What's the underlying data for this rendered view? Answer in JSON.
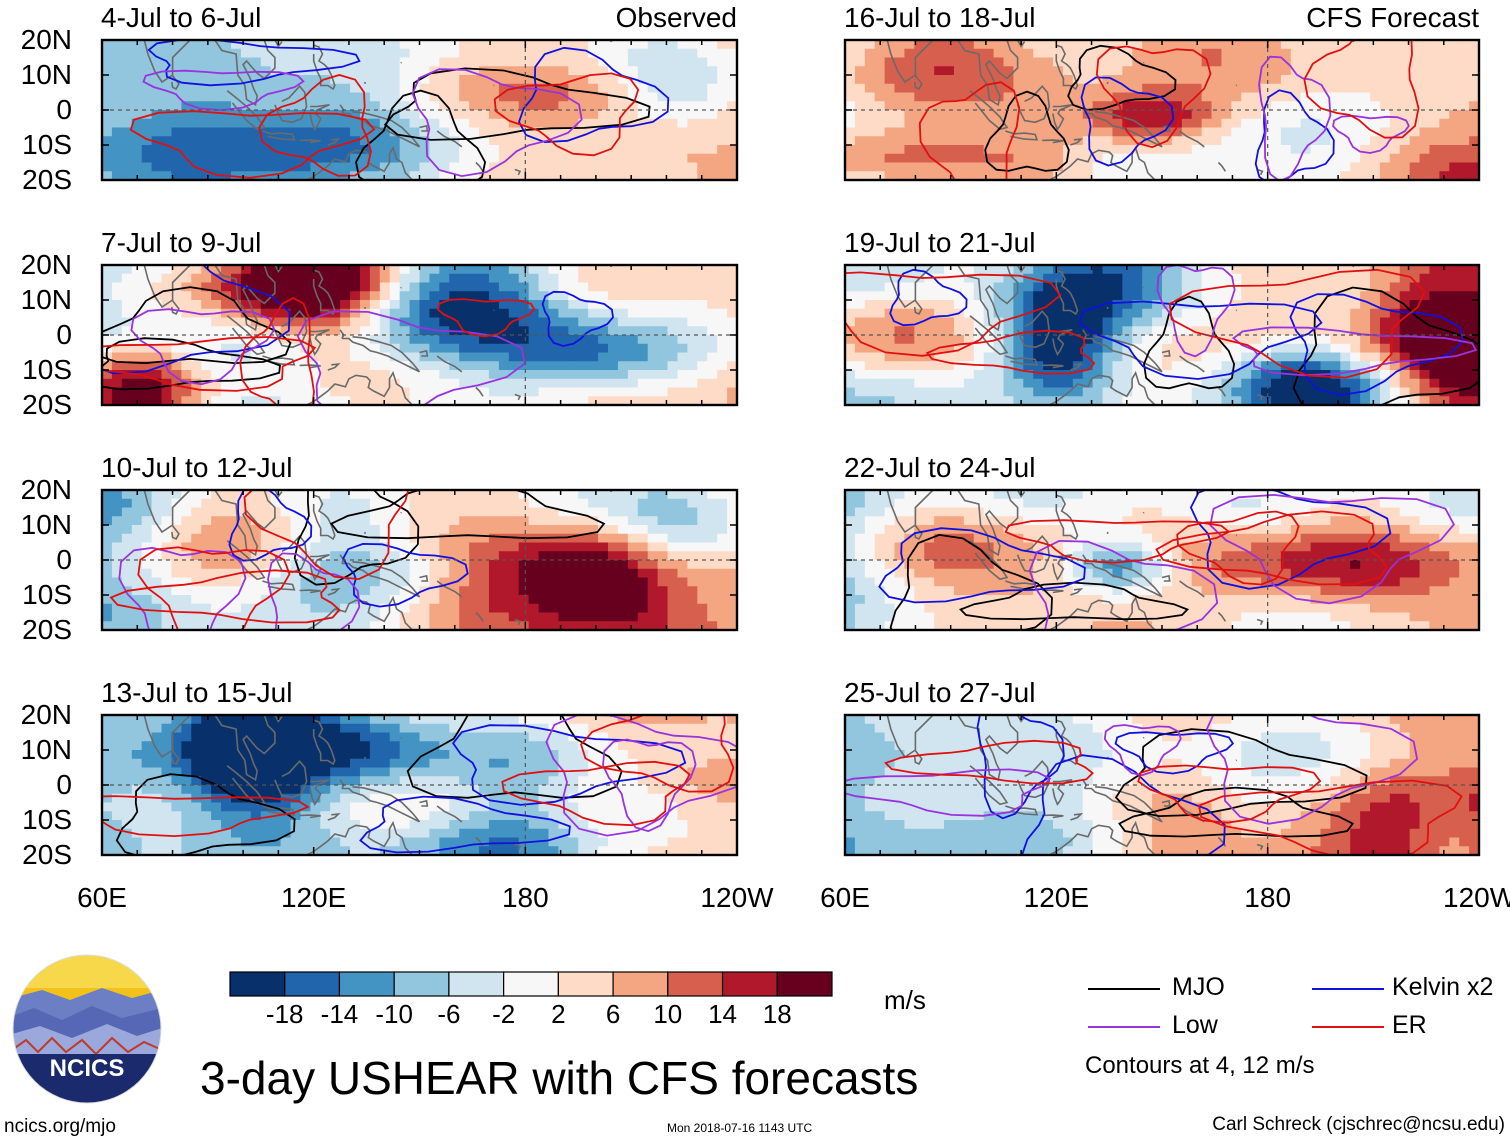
{
  "chart_data": {
    "type": "heatmap",
    "title": "3-day USHEAR with CFS forecasts",
    "variable": "USHEAR",
    "units": "m/s",
    "observed_label": "Observed",
    "forecast_label": "CFS Forecast",
    "lat_ticks": [
      "20N",
      "10N",
      "0",
      "10S",
      "20S"
    ],
    "lat_values": [
      20,
      10,
      0,
      -10,
      -20
    ],
    "lon_ticks": [
      "60E",
      "120E",
      "180",
      "120W"
    ],
    "lon_values": [
      60,
      120,
      180,
      240
    ],
    "lon_range": [
      60,
      240
    ],
    "lat_range": [
      -20,
      20
    ],
    "colorbar": {
      "tick_labels": [
        "-18",
        "-14",
        "-10",
        "-6",
        "-2",
        "2",
        "6",
        "10",
        "14",
        "18"
      ],
      "colors": [
        "#08306b",
        "#2166ac",
        "#4393c3",
        "#92c5de",
        "#d1e5f0",
        "#f7f7f7",
        "#fddbc7",
        "#f4a582",
        "#d6604d",
        "#b2182b",
        "#67001f"
      ]
    },
    "panels": [
      {
        "period": "4-Jul to 6-Jul",
        "kind": "observed",
        "seed": 3
      },
      {
        "period": "7-Jul to 9-Jul",
        "kind": "observed",
        "seed": 7
      },
      {
        "period": "10-Jul to 12-Jul",
        "kind": "observed",
        "seed": 11
      },
      {
        "period": "13-Jul to 15-Jul",
        "kind": "observed",
        "seed": 19
      },
      {
        "period": "16-Jul to 18-Jul",
        "kind": "forecast",
        "seed": 23
      },
      {
        "period": "19-Jul to 21-Jul",
        "kind": "forecast",
        "seed": 29
      },
      {
        "period": "22-Jul to 24-Jul",
        "kind": "forecast",
        "seed": 31
      },
      {
        "period": "25-Jul to 27-Jul",
        "kind": "forecast",
        "seed": 37
      }
    ],
    "legend": [
      {
        "name": "MJO",
        "color": "#000000"
      },
      {
        "name": "Kelvin x2",
        "color": "#1010e0"
      },
      {
        "name": "Low",
        "color": "#9933dd"
      },
      {
        "name": "ER",
        "color": "#e01010"
      }
    ],
    "contour_note": "Contours at 4, 12 m/s"
  },
  "branding": {
    "logo_text": "NCICS",
    "site": "ncics.org/mjo",
    "timestamp": "Mon 2018-07-16 1143 UTC",
    "author": "Carl Schreck (cjschrec@ncsu.edu)"
  }
}
